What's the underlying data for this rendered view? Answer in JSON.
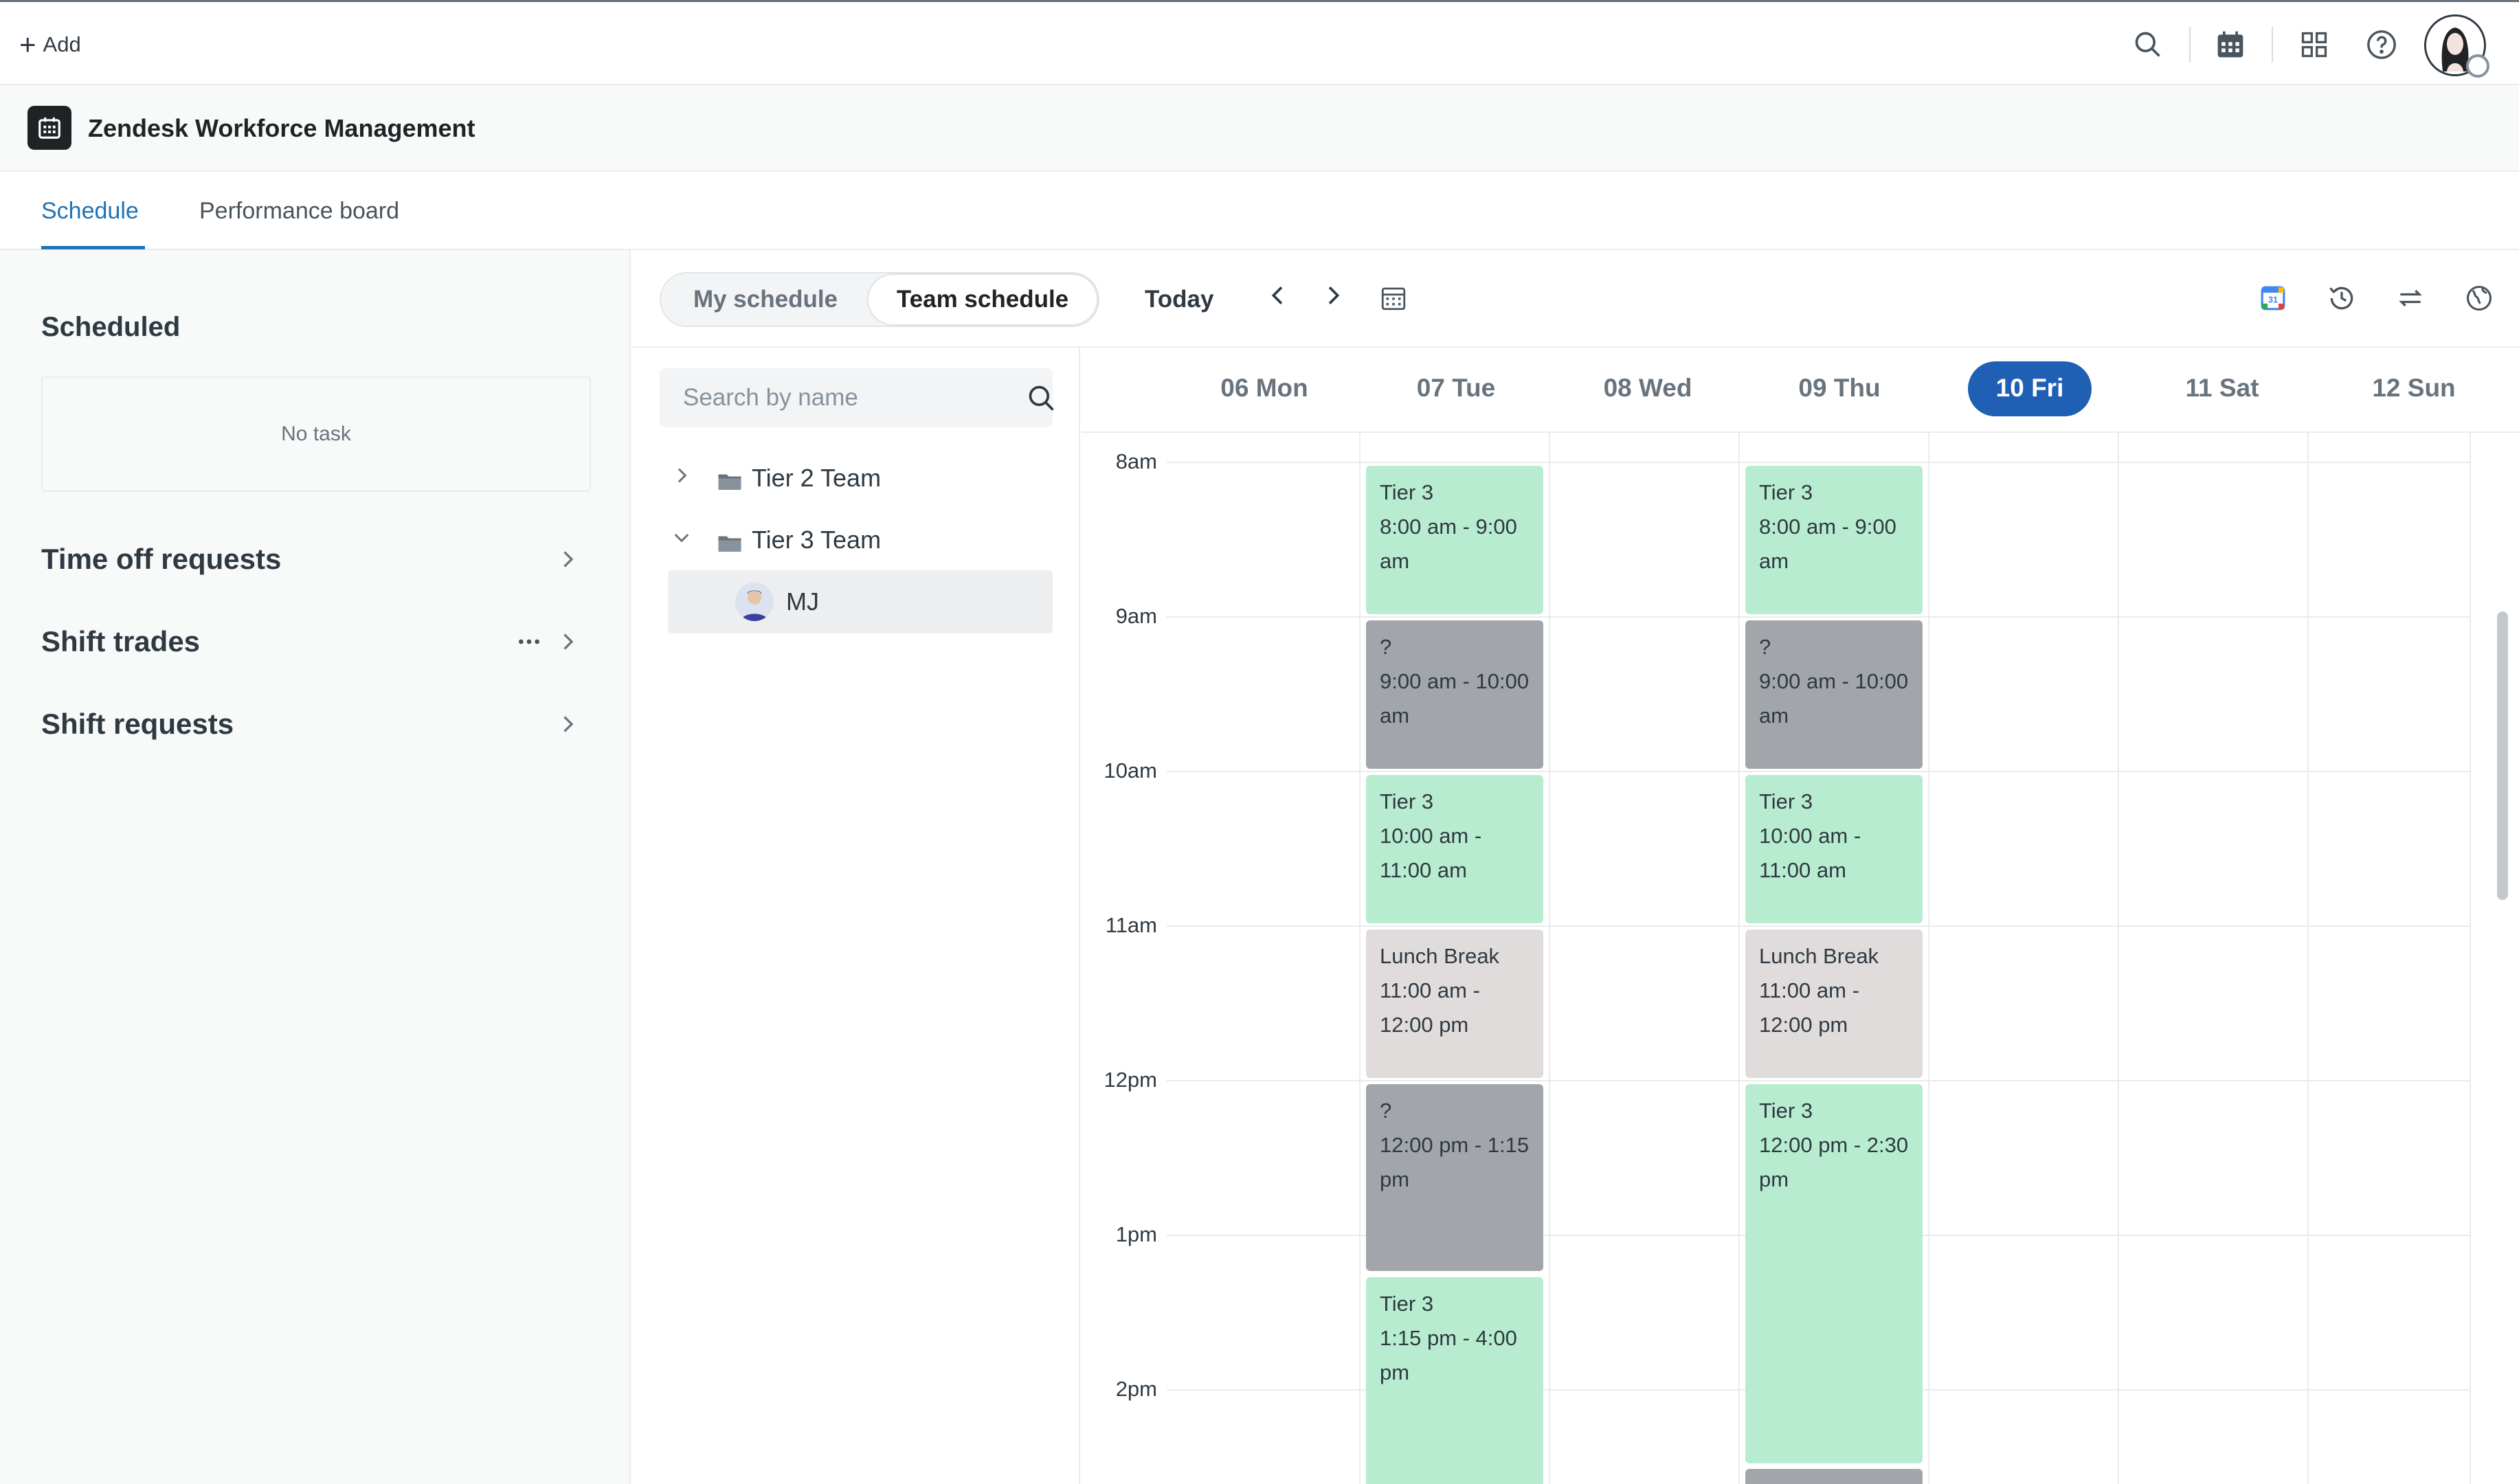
{
  "topbar": {
    "add_label": "Add",
    "icons": [
      "search-icon",
      "calendar-icon",
      "apps-grid-icon",
      "help-icon",
      "user-avatar"
    ]
  },
  "product": {
    "name": "Zendesk Workforce Management"
  },
  "tabs": [
    {
      "label": "Schedule",
      "active": true
    },
    {
      "label": "Performance board",
      "active": false
    }
  ],
  "left_panel": {
    "scheduled_title": "Scheduled",
    "no_task": "No task",
    "rows": [
      {
        "label": "Time off requests"
      },
      {
        "label": "Shift trades"
      },
      {
        "label": "Shift requests"
      }
    ]
  },
  "toolbar": {
    "my_schedule": "My schedule",
    "team_schedule": "Team schedule",
    "today": "Today",
    "right_icons": [
      "google-calendar-icon",
      "history-icon",
      "swap-icon",
      "timezone-globe-icon"
    ]
  },
  "people": {
    "search_placeholder": "Search by name",
    "teams": [
      {
        "label": "Tier 2 Team",
        "expanded": false
      },
      {
        "label": "Tier 3 Team",
        "expanded": true
      }
    ],
    "member": "MJ"
  },
  "calendar": {
    "days": [
      "06 Mon",
      "07 Tue",
      "08 Wed",
      "09 Thu",
      "10 Fri",
      "11 Sat",
      "12 Sun"
    ],
    "selected_day": "10 Fri",
    "hours": [
      "8am",
      "9am",
      "10am",
      "11am",
      "12pm",
      "1pm",
      "2pm"
    ],
    "events": {
      "tue": [
        {
          "title": "Tier 3",
          "time": "8:00 am - 9:00 am",
          "kind": "green"
        },
        {
          "title": "?",
          "time": "9:00 am - 10:00 am",
          "kind": "gray"
        },
        {
          "title": "Tier 3",
          "time": "10:00 am - 11:00 am",
          "kind": "green"
        },
        {
          "title": "Lunch Break",
          "time": "11:00 am - 12:00 pm",
          "kind": "lunch"
        },
        {
          "title": "?",
          "time": "12:00 pm - 1:15 pm",
          "kind": "gray"
        },
        {
          "title": "Tier 3",
          "time": "1:15 pm - 4:00 pm",
          "kind": "green"
        }
      ],
      "thu": [
        {
          "title": "Tier 3",
          "time": "8:00 am - 9:00 am",
          "kind": "green"
        },
        {
          "title": "?",
          "time": "9:00 am - 10:00 am",
          "kind": "gray"
        },
        {
          "title": "Tier 3",
          "time": "10:00 am - 11:00 am",
          "kind": "green"
        },
        {
          "title": "Lunch Break",
          "time": "11:00 am - 12:00 pm",
          "kind": "lunch"
        },
        {
          "title": "Tier 3",
          "time": "12:00 pm - 2:30 pm",
          "kind": "green"
        }
      ]
    }
  }
}
